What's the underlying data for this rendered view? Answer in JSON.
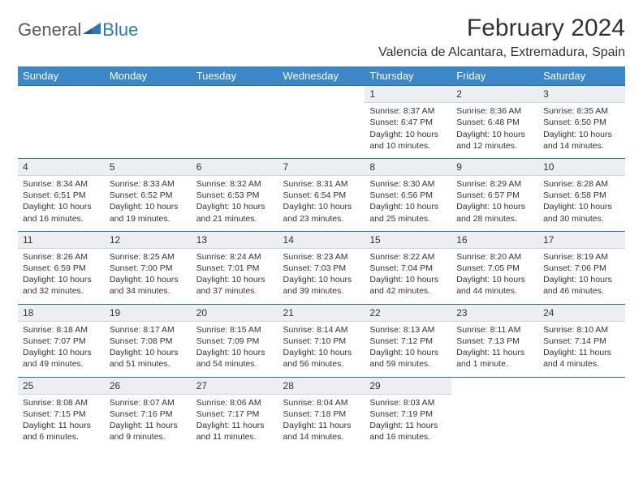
{
  "brand": {
    "text1": "General",
    "text2": "Blue"
  },
  "title": "February 2024",
  "location": "Valencia de Alcantara, Extremadura, Spain",
  "colors": {
    "header_bg": "#3b87c8",
    "header_text": "#ffffff",
    "daynum_bg": "#eceff1",
    "row_divider": "#2a6fa5",
    "text": "#333333",
    "logo_gray": "#5a5a5a",
    "logo_blue": "#2a7ab9",
    "page_bg": "#ffffff"
  },
  "weekdays": [
    "Sunday",
    "Monday",
    "Tuesday",
    "Wednesday",
    "Thursday",
    "Friday",
    "Saturday"
  ],
  "weeks": [
    [
      null,
      null,
      null,
      null,
      {
        "n": "1",
        "sr": "Sunrise: 8:37 AM",
        "ss": "Sunset: 6:47 PM",
        "d1": "Daylight: 10 hours",
        "d2": "and 10 minutes."
      },
      {
        "n": "2",
        "sr": "Sunrise: 8:36 AM",
        "ss": "Sunset: 6:48 PM",
        "d1": "Daylight: 10 hours",
        "d2": "and 12 minutes."
      },
      {
        "n": "3",
        "sr": "Sunrise: 8:35 AM",
        "ss": "Sunset: 6:50 PM",
        "d1": "Daylight: 10 hours",
        "d2": "and 14 minutes."
      }
    ],
    [
      {
        "n": "4",
        "sr": "Sunrise: 8:34 AM",
        "ss": "Sunset: 6:51 PM",
        "d1": "Daylight: 10 hours",
        "d2": "and 16 minutes."
      },
      {
        "n": "5",
        "sr": "Sunrise: 8:33 AM",
        "ss": "Sunset: 6:52 PM",
        "d1": "Daylight: 10 hours",
        "d2": "and 19 minutes."
      },
      {
        "n": "6",
        "sr": "Sunrise: 8:32 AM",
        "ss": "Sunset: 6:53 PM",
        "d1": "Daylight: 10 hours",
        "d2": "and 21 minutes."
      },
      {
        "n": "7",
        "sr": "Sunrise: 8:31 AM",
        "ss": "Sunset: 6:54 PM",
        "d1": "Daylight: 10 hours",
        "d2": "and 23 minutes."
      },
      {
        "n": "8",
        "sr": "Sunrise: 8:30 AM",
        "ss": "Sunset: 6:56 PM",
        "d1": "Daylight: 10 hours",
        "d2": "and 25 minutes."
      },
      {
        "n": "9",
        "sr": "Sunrise: 8:29 AM",
        "ss": "Sunset: 6:57 PM",
        "d1": "Daylight: 10 hours",
        "d2": "and 28 minutes."
      },
      {
        "n": "10",
        "sr": "Sunrise: 8:28 AM",
        "ss": "Sunset: 6:58 PM",
        "d1": "Daylight: 10 hours",
        "d2": "and 30 minutes."
      }
    ],
    [
      {
        "n": "11",
        "sr": "Sunrise: 8:26 AM",
        "ss": "Sunset: 6:59 PM",
        "d1": "Daylight: 10 hours",
        "d2": "and 32 minutes."
      },
      {
        "n": "12",
        "sr": "Sunrise: 8:25 AM",
        "ss": "Sunset: 7:00 PM",
        "d1": "Daylight: 10 hours",
        "d2": "and 34 minutes."
      },
      {
        "n": "13",
        "sr": "Sunrise: 8:24 AM",
        "ss": "Sunset: 7:01 PM",
        "d1": "Daylight: 10 hours",
        "d2": "and 37 minutes."
      },
      {
        "n": "14",
        "sr": "Sunrise: 8:23 AM",
        "ss": "Sunset: 7:03 PM",
        "d1": "Daylight: 10 hours",
        "d2": "and 39 minutes."
      },
      {
        "n": "15",
        "sr": "Sunrise: 8:22 AM",
        "ss": "Sunset: 7:04 PM",
        "d1": "Daylight: 10 hours",
        "d2": "and 42 minutes."
      },
      {
        "n": "16",
        "sr": "Sunrise: 8:20 AM",
        "ss": "Sunset: 7:05 PM",
        "d1": "Daylight: 10 hours",
        "d2": "and 44 minutes."
      },
      {
        "n": "17",
        "sr": "Sunrise: 8:19 AM",
        "ss": "Sunset: 7:06 PM",
        "d1": "Daylight: 10 hours",
        "d2": "and 46 minutes."
      }
    ],
    [
      {
        "n": "18",
        "sr": "Sunrise: 8:18 AM",
        "ss": "Sunset: 7:07 PM",
        "d1": "Daylight: 10 hours",
        "d2": "and 49 minutes."
      },
      {
        "n": "19",
        "sr": "Sunrise: 8:17 AM",
        "ss": "Sunset: 7:08 PM",
        "d1": "Daylight: 10 hours",
        "d2": "and 51 minutes."
      },
      {
        "n": "20",
        "sr": "Sunrise: 8:15 AM",
        "ss": "Sunset: 7:09 PM",
        "d1": "Daylight: 10 hours",
        "d2": "and 54 minutes."
      },
      {
        "n": "21",
        "sr": "Sunrise: 8:14 AM",
        "ss": "Sunset: 7:10 PM",
        "d1": "Daylight: 10 hours",
        "d2": "and 56 minutes."
      },
      {
        "n": "22",
        "sr": "Sunrise: 8:13 AM",
        "ss": "Sunset: 7:12 PM",
        "d1": "Daylight: 10 hours",
        "d2": "and 59 minutes."
      },
      {
        "n": "23",
        "sr": "Sunrise: 8:11 AM",
        "ss": "Sunset: 7:13 PM",
        "d1": "Daylight: 11 hours",
        "d2": "and 1 minute."
      },
      {
        "n": "24",
        "sr": "Sunrise: 8:10 AM",
        "ss": "Sunset: 7:14 PM",
        "d1": "Daylight: 11 hours",
        "d2": "and 4 minutes."
      }
    ],
    [
      {
        "n": "25",
        "sr": "Sunrise: 8:08 AM",
        "ss": "Sunset: 7:15 PM",
        "d1": "Daylight: 11 hours",
        "d2": "and 6 minutes."
      },
      {
        "n": "26",
        "sr": "Sunrise: 8:07 AM",
        "ss": "Sunset: 7:16 PM",
        "d1": "Daylight: 11 hours",
        "d2": "and 9 minutes."
      },
      {
        "n": "27",
        "sr": "Sunrise: 8:06 AM",
        "ss": "Sunset: 7:17 PM",
        "d1": "Daylight: 11 hours",
        "d2": "and 11 minutes."
      },
      {
        "n": "28",
        "sr": "Sunrise: 8:04 AM",
        "ss": "Sunset: 7:18 PM",
        "d1": "Daylight: 11 hours",
        "d2": "and 14 minutes."
      },
      {
        "n": "29",
        "sr": "Sunrise: 8:03 AM",
        "ss": "Sunset: 7:19 PM",
        "d1": "Daylight: 11 hours",
        "d2": "and 16 minutes."
      },
      null,
      null
    ]
  ]
}
